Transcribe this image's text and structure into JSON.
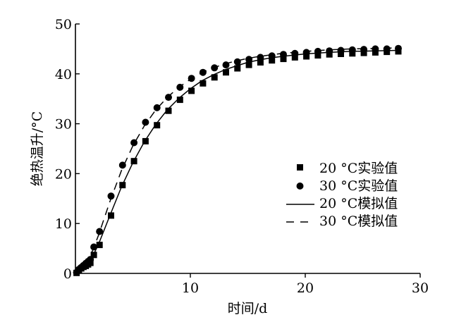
{
  "chart_data": {
    "type": "scatter",
    "title": "",
    "xlabel": "时间/d",
    "ylabel": "绝热温升/°C",
    "xlim": [
      0,
      30
    ],
    "ylim": [
      0,
      50
    ],
    "xticks": [
      10,
      20,
      30
    ],
    "yticks": [
      0,
      10,
      20,
      30,
      40,
      50
    ],
    "grid": false,
    "legend_position": "center-right",
    "series": [
      {
        "name": "20 °C实验值",
        "kind": "scatter",
        "marker": "square",
        "x": [
          0.1,
          0.3,
          0.5,
          0.7,
          0.9,
          1.1,
          1.3,
          1.6,
          2.1,
          3.1,
          4.1,
          5.1,
          6.1,
          7.1,
          8.1,
          9.1,
          10.1,
          11.1,
          12.1,
          13.1,
          14.1,
          15.1,
          16.1,
          17.1,
          18.1,
          19.1,
          20.1,
          21.1,
          22.1,
          23.1,
          24.1,
          25.1,
          26.1,
          27.1,
          28.1
        ],
        "y": [
          0.1,
          0.6,
          1.0,
          1.3,
          1.5,
          1.8,
          2.1,
          3.7,
          5.7,
          11.6,
          17.7,
          22.5,
          26.5,
          29.7,
          32.6,
          34.8,
          36.6,
          38.1,
          39.3,
          40.3,
          41.1,
          41.8,
          42.3,
          42.7,
          43.0,
          43.3,
          43.5,
          43.7,
          43.9,
          44.0,
          44.1,
          44.2,
          44.3,
          44.4,
          44.5
        ]
      },
      {
        "name": "30 °C实验值",
        "kind": "scatter",
        "marker": "circle",
        "x": [
          0.1,
          0.3,
          0.5,
          0.7,
          0.9,
          1.1,
          1.3,
          1.6,
          2.1,
          3.1,
          4.1,
          5.1,
          6.1,
          7.1,
          8.1,
          9.1,
          10.1,
          11.1,
          12.1,
          13.1,
          14.1,
          15.1,
          16.1,
          17.1,
          18.1,
          19.1,
          20.1,
          21.1,
          22.1,
          23.1,
          24.1,
          25.1,
          26.1,
          27.1,
          28.1
        ],
        "y": [
          0.2,
          0.8,
          1.2,
          1.6,
          2.0,
          2.4,
          2.8,
          5.3,
          8.4,
          15.5,
          21.7,
          26.2,
          30.3,
          33.2,
          35.3,
          37.3,
          39.1,
          40.3,
          41.2,
          41.8,
          42.4,
          42.9,
          43.3,
          43.6,
          43.9,
          44.1,
          44.3,
          44.5,
          44.6,
          44.7,
          44.8,
          44.9,
          45.0,
          45.0,
          45.1
        ]
      },
      {
        "name": "20 °C模拟值",
        "kind": "line",
        "style": "solid",
        "x": [
          0,
          0.5,
          1,
          1.5,
          2,
          3,
          4,
          5,
          6,
          7,
          8,
          9,
          10,
          11,
          12,
          13,
          14,
          15,
          16,
          17,
          18,
          20,
          22,
          24,
          26,
          28
        ],
        "y": [
          0,
          0.6,
          1.6,
          3.4,
          5.8,
          11.6,
          17.3,
          22.2,
          26.4,
          29.9,
          32.8,
          35.1,
          37.0,
          38.6,
          39.8,
          40.8,
          41.6,
          42.3,
          42.8,
          43.2,
          43.5,
          44.0,
          44.3,
          44.5,
          44.6,
          44.7
        ]
      },
      {
        "name": "30 °C模拟值",
        "kind": "line",
        "style": "dashed",
        "x": [
          0,
          0.5,
          1,
          1.5,
          2,
          3,
          4,
          5,
          6,
          7,
          8,
          9,
          10,
          11,
          12,
          13,
          14,
          15,
          16,
          17,
          18,
          20,
          22,
          24,
          26,
          28
        ],
        "y": [
          0,
          0.8,
          2.3,
          4.6,
          7.6,
          14.4,
          20.6,
          25.6,
          29.6,
          32.8,
          35.3,
          37.3,
          38.9,
          40.2,
          41.2,
          42.0,
          42.6,
          43.1,
          43.5,
          43.8,
          44.1,
          44.5,
          44.8,
          45.0,
          45.1,
          45.2
        ]
      }
    ]
  }
}
